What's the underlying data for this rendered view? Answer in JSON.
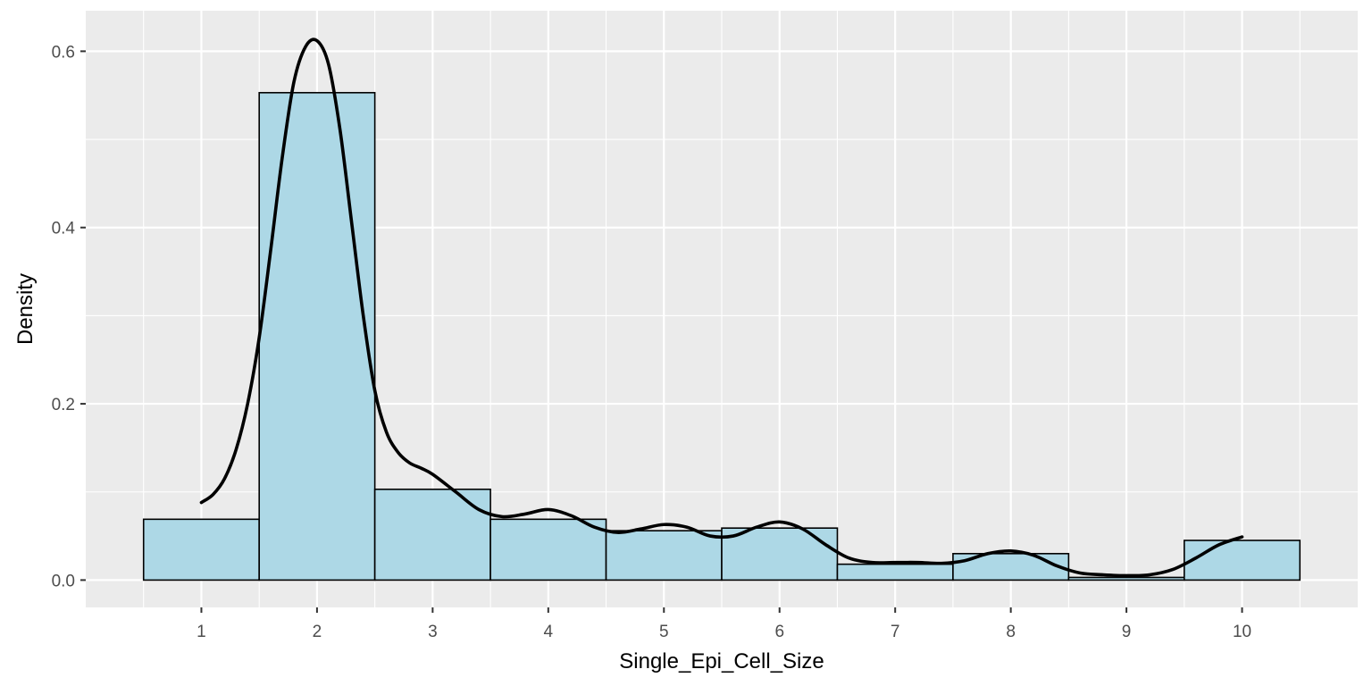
{
  "chart_data": {
    "type": "bar",
    "subtype": "histogram-with-density",
    "title": "",
    "xlabel": "Single_Epi_Cell_Size",
    "ylabel": "Density",
    "xlim": [
      0.0,
      11.0
    ],
    "ylim": [
      -0.031,
      0.646
    ],
    "x_ticks": [
      1,
      2,
      3,
      4,
      5,
      6,
      7,
      8,
      9,
      10
    ],
    "x_tick_labels": [
      "1",
      "2",
      "3",
      "4",
      "5",
      "6",
      "7",
      "8",
      "9",
      "10"
    ],
    "y_ticks": [
      0.0,
      0.2,
      0.4,
      0.6
    ],
    "y_tick_labels": [
      "0.0",
      "0.2",
      "0.4",
      "0.6"
    ],
    "grid": true,
    "legend": "none",
    "bins": [
      {
        "x": 1,
        "value": 0.069
      },
      {
        "x": 2,
        "value": 0.553
      },
      {
        "x": 3,
        "value": 0.103
      },
      {
        "x": 4,
        "value": 0.069
      },
      {
        "x": 5,
        "value": 0.056
      },
      {
        "x": 6,
        "value": 0.059
      },
      {
        "x": 7,
        "value": 0.018
      },
      {
        "x": 8,
        "value": 0.03
      },
      {
        "x": 9,
        "value": 0.003
      },
      {
        "x": 10,
        "value": 0.045
      }
    ],
    "bin_width": 1,
    "density_curve": {
      "x": [
        1.0,
        1.1,
        1.2,
        1.3,
        1.4,
        1.5,
        1.6,
        1.7,
        1.8,
        1.9,
        2.0,
        2.1,
        2.2,
        2.3,
        2.4,
        2.5,
        2.6,
        2.7,
        2.8,
        2.9,
        3.0,
        3.2,
        3.4,
        3.6,
        3.8,
        4.0,
        4.2,
        4.4,
        4.6,
        4.8,
        5.0,
        5.2,
        5.4,
        5.6,
        5.8,
        6.0,
        6.2,
        6.4,
        6.6,
        6.8,
        7.0,
        7.2,
        7.4,
        7.6,
        7.8,
        8.0,
        8.2,
        8.4,
        8.6,
        8.8,
        9.0,
        9.2,
        9.4,
        9.6,
        9.8,
        10.0
      ],
      "y": [
        0.088,
        0.097,
        0.115,
        0.148,
        0.2,
        0.275,
        0.375,
        0.48,
        0.565,
        0.605,
        0.612,
        0.585,
        0.51,
        0.405,
        0.3,
        0.215,
        0.168,
        0.145,
        0.133,
        0.127,
        0.12,
        0.1,
        0.08,
        0.072,
        0.075,
        0.08,
        0.073,
        0.06,
        0.054,
        0.058,
        0.063,
        0.06,
        0.05,
        0.05,
        0.06,
        0.066,
        0.058,
        0.04,
        0.025,
        0.02,
        0.02,
        0.02,
        0.019,
        0.022,
        0.03,
        0.033,
        0.028,
        0.016,
        0.008,
        0.006,
        0.005,
        0.006,
        0.012,
        0.025,
        0.04,
        0.049
      ]
    },
    "colors": {
      "panel_background": "#ebebeb",
      "grid_major": "#ffffff",
      "bar_fill": "#add8e6",
      "bar_outline": "#000000",
      "density_line": "#000000"
    }
  }
}
